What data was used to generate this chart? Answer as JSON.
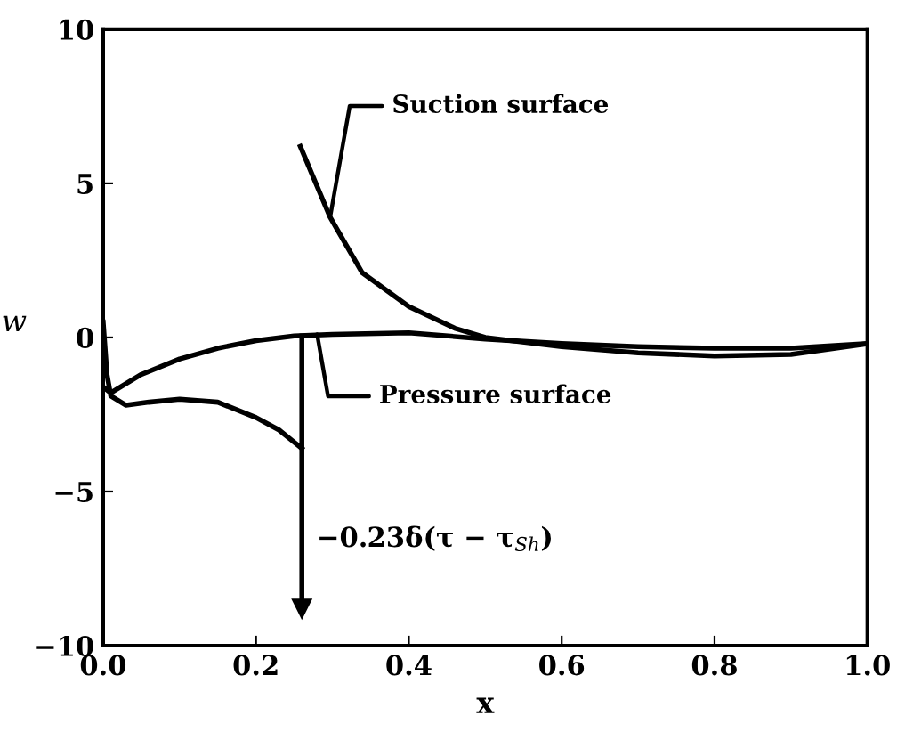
{
  "chart_data": {
    "type": "line",
    "xlabel": "x",
    "ylabel": "w",
    "xlim": [
      0.0,
      1.0
    ],
    "xticks": [
      {
        "value": 0.0,
        "label": "0.0"
      },
      0.2,
      0.4,
      0.6,
      0.8,
      {
        "value": 1.0,
        "label": "1.0"
      }
    ],
    "ylim": [
      -10,
      10
    ],
    "yticks": [
      {
        "value": -10,
        "label": "−10"
      },
      {
        "value": -5,
        "label": "−5"
      },
      0,
      5,
      10
    ],
    "grid": false,
    "legend": false,
    "marker": "none",
    "line_style": "solid",
    "series": [
      {
        "color": "#000000",
        "x": [
          0.0,
          0.005,
          0.01,
          0.03,
          0.06,
          0.1,
          0.15,
          0.2,
          0.23,
          0.25,
          0.26
        ],
        "values": [
          0.5,
          -1.2,
          -1.9,
          -2.2,
          -2.1,
          -2.0,
          -2.1,
          -2.6,
          -3.0,
          -3.4,
          -3.6
        ]
      },
      {
        "color": "#000000",
        "x": [
          0.258,
          0.297,
          0.339,
          0.4,
          0.46,
          0.5,
          0.6,
          0.7,
          0.8,
          0.9,
          1.0
        ],
        "values": [
          6.2,
          3.9,
          2.1,
          1.0,
          0.3,
          0.0,
          -0.3,
          -0.5,
          -0.6,
          -0.55,
          -0.2
        ]
      },
      {
        "color": "#000000",
        "marker": "triangle",
        "x": [
          0.26,
          0.26
        ],
        "values": [
          0.05,
          -8.8
        ]
      },
      {
        "color": "#000000",
        "x": [
          0.0,
          0.01,
          0.05,
          0.1,
          0.15,
          0.2,
          0.25,
          0.3,
          0.4,
          0.5,
          0.6,
          0.7,
          0.8,
          0.9,
          1.0
        ],
        "values": [
          -1.6,
          -1.8,
          -1.2,
          -0.7,
          -0.35,
          -0.1,
          0.05,
          0.1,
          0.15,
          -0.05,
          -0.2,
          -0.3,
          -0.35,
          -0.35,
          -0.2
        ]
      }
    ],
    "annotations": [
      {
        "text": "Suction surface",
        "x": 0.297,
        "y": 3.9
      },
      {
        "text": "Pressure surface",
        "x": 0.28,
        "y": 0.1
      },
      "−0.23δ(τ − τ$_{Sh}$)"
    ]
  }
}
